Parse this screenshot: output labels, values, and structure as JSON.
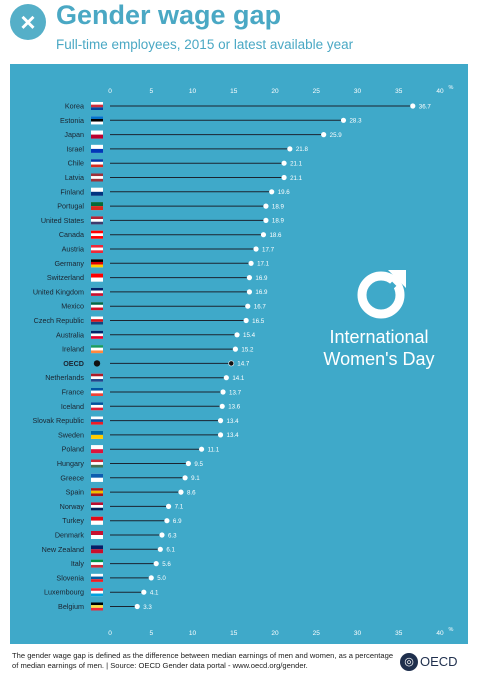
{
  "header": {
    "title": "Gender wage gap",
    "subtitle": "Full-time employees, 2015 or latest available year"
  },
  "chart_data": {
    "type": "bar",
    "orientation": "horizontal",
    "title": "Gender wage gap",
    "subtitle": "Full-time employees, 2015 or latest available year",
    "xlim": [
      0,
      40
    ],
    "x_ticks": [
      0,
      5,
      10,
      15,
      20,
      25,
      30,
      35,
      40
    ],
    "unit": "%",
    "grid": false,
    "highlight": "OECD",
    "categories": [
      "Korea",
      "Estonia",
      "Japan",
      "Israel",
      "Chile",
      "Latvia",
      "Finland",
      "Portugal",
      "United States",
      "Canada",
      "Austria",
      "Germany",
      "Switzerland",
      "United Kingdom",
      "Mexico",
      "Czech Republic",
      "Australia",
      "Ireland",
      "OECD",
      "Netherlands",
      "France",
      "Iceland",
      "Slovak Republic",
      "Sweden",
      "Poland",
      "Hungary",
      "Greece",
      "Spain",
      "Norway",
      "Turkey",
      "Denmark",
      "New Zealand",
      "Italy",
      "Slovenia",
      "Luxembourg",
      "Belgium"
    ],
    "values": [
      36.7,
      28.3,
      25.9,
      21.8,
      21.1,
      21.1,
      19.6,
      18.9,
      18.9,
      18.6,
      17.7,
      17.1,
      16.9,
      16.9,
      16.7,
      16.5,
      15.4,
      15.2,
      14.7,
      14.1,
      13.7,
      13.6,
      13.4,
      13.4,
      11.1,
      9.5,
      9.1,
      8.6,
      7.1,
      6.9,
      6.3,
      6.1,
      5.6,
      5.0,
      4.1,
      3.3
    ],
    "value_labels": [
      "36.7",
      "28.3",
      "25.9",
      "21.8",
      "21.1",
      "21.1",
      "19.6",
      "18.9",
      "18.9",
      "18.6",
      "17.7",
      "17.1",
      "16.9",
      "16.9",
      "16.7",
      "16.5",
      "15.4",
      "15.2",
      "14.7",
      "14.1",
      "13.7",
      "13.6",
      "13.4",
      "13.4",
      "11.1",
      "9.5",
      "9.1",
      "8.6",
      "7.1",
      "6.9",
      "6.3",
      "6.1",
      "5.6",
      "5.0",
      "4.1",
      "3.3"
    ]
  },
  "flags": [
    {
      "icon": "korea-flag-icon",
      "colors": [
        "#ffffff",
        "#cd2e3a",
        "#0047a0"
      ]
    },
    {
      "icon": "estonia-flag-icon",
      "colors": [
        "#0072ce",
        "#000000",
        "#ffffff"
      ]
    },
    {
      "icon": "japan-flag-icon",
      "colors": [
        "#ffffff",
        "#bc002d"
      ]
    },
    {
      "icon": "israel-flag-icon",
      "colors": [
        "#ffffff",
        "#0038b8"
      ]
    },
    {
      "icon": "chile-flag-icon",
      "colors": [
        "#0039a6",
        "#ffffff",
        "#d52b1e"
      ]
    },
    {
      "icon": "latvia-flag-icon",
      "colors": [
        "#9e3039",
        "#ffffff",
        "#9e3039"
      ]
    },
    {
      "icon": "finland-flag-icon",
      "colors": [
        "#ffffff",
        "#003580"
      ]
    },
    {
      "icon": "portugal-flag-icon",
      "colors": [
        "#046a38",
        "#da291c"
      ]
    },
    {
      "icon": "united-states-flag-icon",
      "colors": [
        "#b22234",
        "#ffffff",
        "#3c3b6e"
      ]
    },
    {
      "icon": "canada-flag-icon",
      "colors": [
        "#ff0000",
        "#ffffff",
        "#ff0000"
      ]
    },
    {
      "icon": "austria-flag-icon",
      "colors": [
        "#ed2939",
        "#ffffff",
        "#ed2939"
      ]
    },
    {
      "icon": "germany-flag-icon",
      "colors": [
        "#000000",
        "#dd0000",
        "#ffce00"
      ]
    },
    {
      "icon": "switzerland-flag-icon",
      "colors": [
        "#ff0000",
        "#ffffff"
      ]
    },
    {
      "icon": "united-kingdom-flag-icon",
      "colors": [
        "#012169",
        "#ffffff",
        "#c8102e"
      ]
    },
    {
      "icon": "mexico-flag-icon",
      "colors": [
        "#006847",
        "#ffffff",
        "#ce1126"
      ]
    },
    {
      "icon": "czech-republic-flag-icon",
      "colors": [
        "#ffffff",
        "#d7141a",
        "#11457e"
      ]
    },
    {
      "icon": "australia-flag-icon",
      "colors": [
        "#012169",
        "#ffffff",
        "#e4002b"
      ]
    },
    {
      "icon": "ireland-flag-icon",
      "colors": [
        "#169b62",
        "#ffffff",
        "#ff883e"
      ]
    },
    {
      "icon": "oecd-marker-icon",
      "colors": [
        "#111111"
      ]
    },
    {
      "icon": "netherlands-flag-icon",
      "colors": [
        "#ae1c28",
        "#ffffff",
        "#21468b"
      ]
    },
    {
      "icon": "france-flag-icon",
      "colors": [
        "#0055a4",
        "#ffffff",
        "#ef4135"
      ]
    },
    {
      "icon": "iceland-flag-icon",
      "colors": [
        "#02529c",
        "#ffffff",
        "#dc1e35"
      ]
    },
    {
      "icon": "slovak-republic-flag-icon",
      "colors": [
        "#ffffff",
        "#0b4ea2",
        "#ee1c25"
      ]
    },
    {
      "icon": "sweden-flag-icon",
      "colors": [
        "#006aa7",
        "#fecc00"
      ]
    },
    {
      "icon": "poland-flag-icon",
      "colors": [
        "#ffffff",
        "#dc143c"
      ]
    },
    {
      "icon": "hungary-flag-icon",
      "colors": [
        "#ce2939",
        "#ffffff",
        "#477050"
      ]
    },
    {
      "icon": "greece-flag-icon",
      "colors": [
        "#0d5eaf",
        "#ffffff"
      ]
    },
    {
      "icon": "spain-flag-icon",
      "colors": [
        "#aa151b",
        "#f1bf00",
        "#aa151b"
      ]
    },
    {
      "icon": "norway-flag-icon",
      "colors": [
        "#ba0c2f",
        "#ffffff",
        "#00205b"
      ]
    },
    {
      "icon": "turkey-flag-icon",
      "colors": [
        "#e30a17",
        "#ffffff"
      ]
    },
    {
      "icon": "denmark-flag-icon",
      "colors": [
        "#c8102e",
        "#ffffff"
      ]
    },
    {
      "icon": "new-zealand-flag-icon",
      "colors": [
        "#012169",
        "#c8102e"
      ]
    },
    {
      "icon": "italy-flag-icon",
      "colors": [
        "#009246",
        "#ffffff",
        "#ce2b37"
      ]
    },
    {
      "icon": "slovenia-flag-icon",
      "colors": [
        "#ffffff",
        "#005da4",
        "#ed1c24"
      ]
    },
    {
      "icon": "luxembourg-flag-icon",
      "colors": [
        "#ed2939",
        "#ffffff",
        "#00a1de"
      ]
    },
    {
      "icon": "belgium-flag-icon",
      "colors": [
        "#000000",
        "#fae042",
        "#ed2939"
      ]
    }
  ],
  "badge": {
    "line1": "International",
    "line2": "Women's Day"
  },
  "footer": {
    "note": "The gender wage gap is defined as the difference between median earnings of men and women, as a percentage of median earnings of men. | Source: OECD Gender data portal - www.oecd.org/gender.",
    "brand": "OECD"
  },
  "colors": {
    "panel": "#3fa9c9",
    "title": "#4aa8c4",
    "bar_line": "#1b2430",
    "dot": "#ffffff",
    "text_dark": "#1b2430",
    "tick_text": "#ffffff"
  }
}
